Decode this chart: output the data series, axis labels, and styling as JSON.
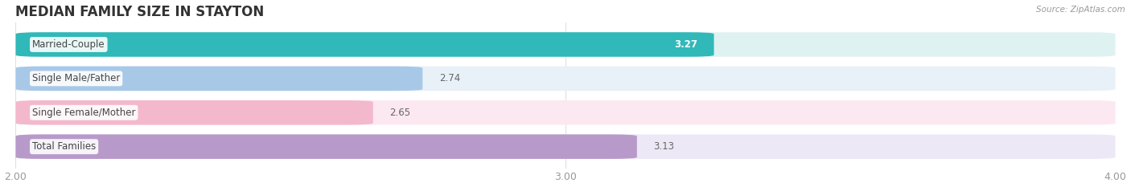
{
  "title": "MEDIAN FAMILY SIZE IN STAYTON",
  "source": "Source: ZipAtlas.com",
  "categories": [
    "Married-Couple",
    "Single Male/Father",
    "Single Female/Mother",
    "Total Families"
  ],
  "values": [
    3.27,
    2.74,
    2.65,
    3.13
  ],
  "bar_colors": [
    "#31b8b8",
    "#a8c8e8",
    "#f4b8cc",
    "#b89aca"
  ],
  "bar_bg_colors": [
    "#dff2f2",
    "#e8f0f8",
    "#fce8f0",
    "#ede8f5"
  ],
  "xlim": [
    2.0,
    4.0
  ],
  "xticks": [
    2.0,
    3.0,
    4.0
  ],
  "xtick_labels": [
    "2.00",
    "3.00",
    "4.00"
  ],
  "bar_height": 0.72,
  "figsize": [
    14.06,
    2.33
  ],
  "dpi": 100,
  "title_fontsize": 12,
  "label_fontsize": 8.5,
  "value_fontsize": 8.5,
  "tick_fontsize": 9,
  "bg_color": "#ffffff",
  "grid_color": "#e0e0e0",
  "value_color_inside": "#ffffff",
  "value_color_outside": "#666666",
  "label_color": "#444444",
  "tick_color": "#999999",
  "title_color": "#333333"
}
